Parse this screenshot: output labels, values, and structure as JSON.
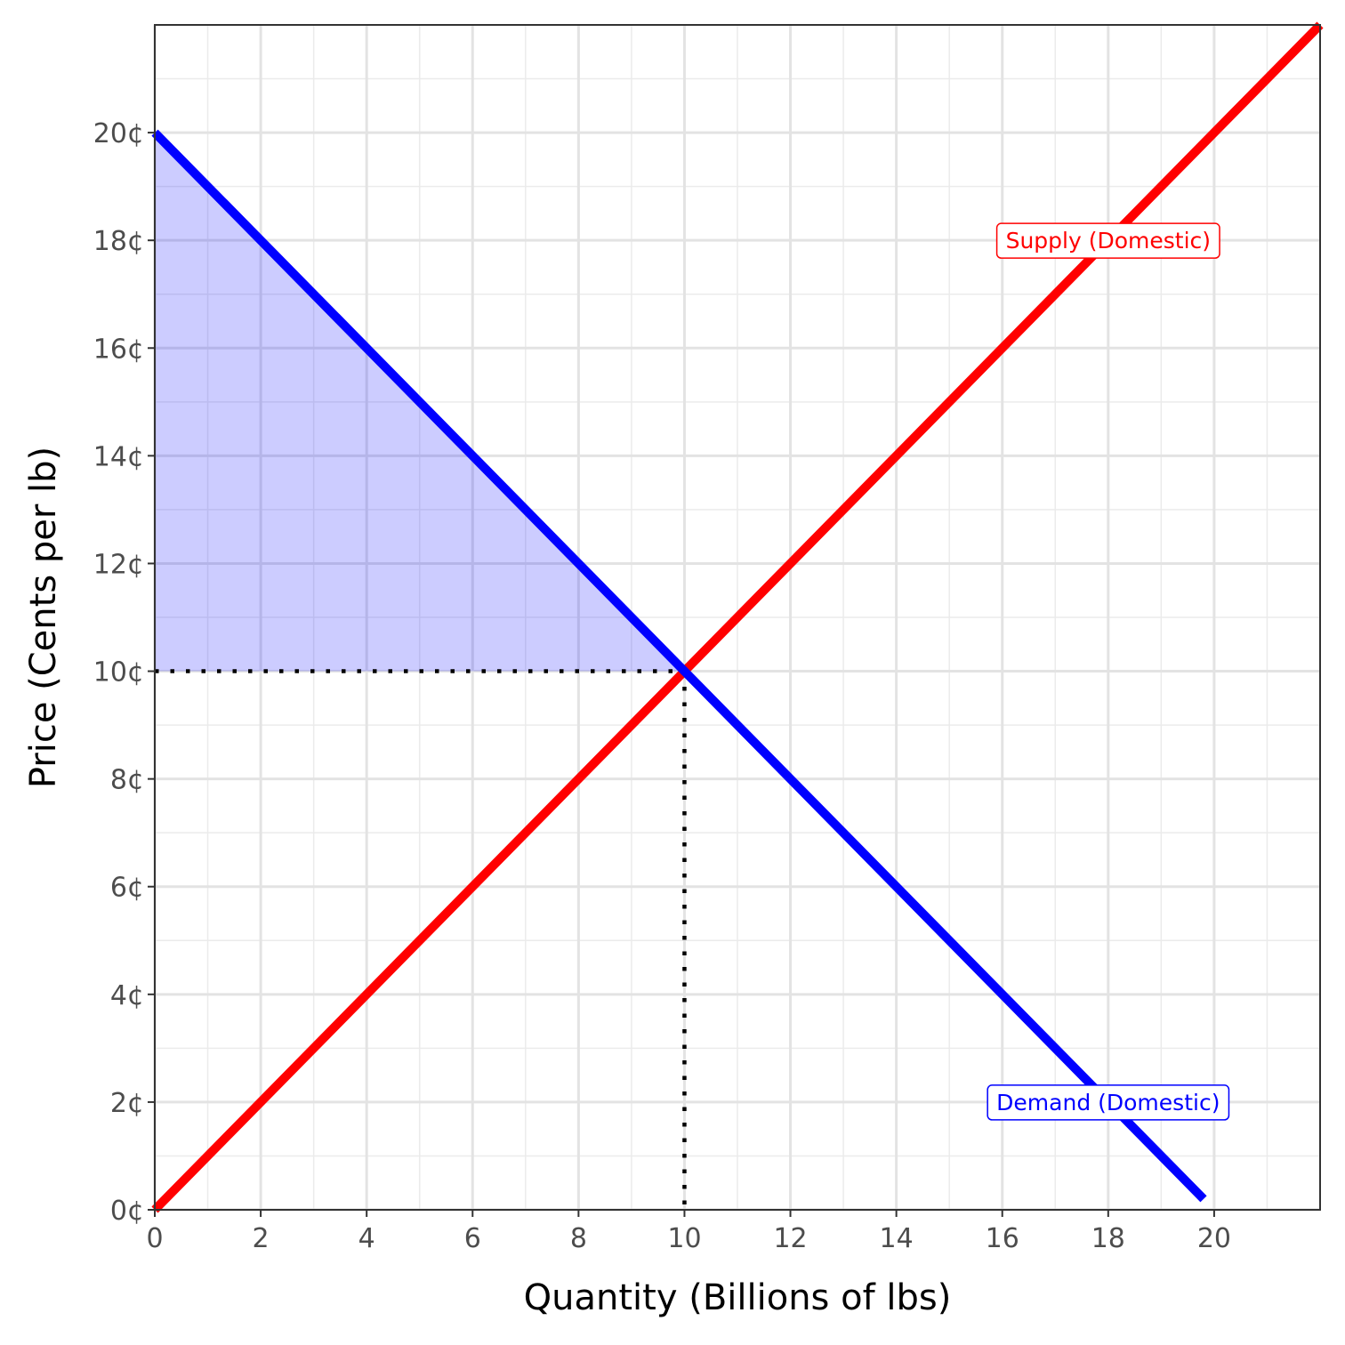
{
  "chart_data": {
    "type": "line",
    "title": "",
    "xlabel": "Quantity (Billions of lbs)",
    "ylabel": "Price (Cents per lb)",
    "xlim": [
      0,
      22
    ],
    "ylim": [
      0,
      22
    ],
    "x_ticks": [
      0,
      2,
      4,
      6,
      8,
      10,
      12,
      14,
      16,
      18,
      20
    ],
    "x_tick_labels": [
      "0",
      "2",
      "4",
      "6",
      "8",
      "10",
      "12",
      "14",
      "16",
      "18",
      "20"
    ],
    "y_ticks": [
      0,
      2,
      4,
      6,
      8,
      10,
      12,
      14,
      16,
      18,
      20
    ],
    "y_tick_labels": [
      "0¢",
      "2¢",
      "4¢",
      "6¢",
      "8¢",
      "10¢",
      "12¢",
      "14¢",
      "16¢",
      "18¢",
      "20¢"
    ],
    "grid": true,
    "series": [
      {
        "name": "Supply (Domestic)",
        "color": "#ff0000",
        "x": [
          0,
          22
        ],
        "y": [
          0,
          22
        ],
        "label_at": [
          18,
          18
        ]
      },
      {
        "name": "Demand (Domestic)",
        "color": "#0000ff",
        "x": [
          0,
          19.8
        ],
        "y": [
          20,
          0.2
        ],
        "label_at": [
          18,
          2
        ]
      }
    ],
    "equilibrium": {
      "x": 10,
      "y": 10
    },
    "shaded_region": {
      "description_free": true,
      "color": "#0000ff",
      "opacity": 0.2,
      "points": [
        [
          0,
          20
        ],
        [
          10,
          10
        ],
        [
          0,
          10
        ]
      ]
    }
  }
}
